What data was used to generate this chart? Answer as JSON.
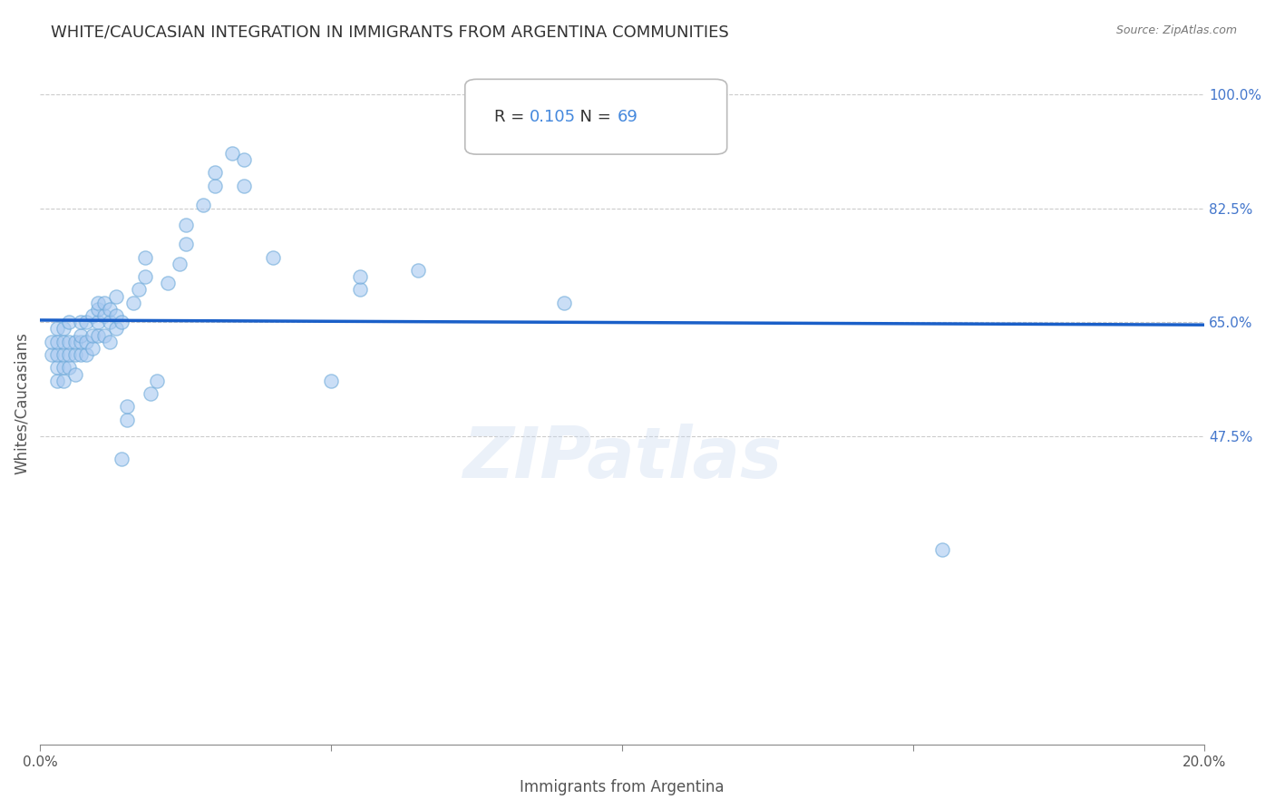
{
  "title": "WHITE/CAUCASIAN INTEGRATION IN IMMIGRANTS FROM ARGENTINA COMMUNITIES",
  "source": "Source: ZipAtlas.com",
  "xlabel": "Immigrants from Argentina",
  "ylabel": "Whites/Caucasians",
  "xlim": [
    0.0,
    0.2
  ],
  "ylim": [
    0.0,
    1.05
  ],
  "ytick_labels": [
    "100.0%",
    "82.5%",
    "65.0%",
    "47.5%"
  ],
  "ytick_positions": [
    1.0,
    0.825,
    0.65,
    0.475
  ],
  "R": 0.105,
  "N": 69,
  "scatter_color": "#a8c8f0",
  "scatter_edge_color": "#6aa8d8",
  "line_color": "#1a5fc8",
  "background_color": "#ffffff",
  "grid_color": "#cccccc",
  "title_color": "#333333",
  "marker_size": 120,
  "scatter_alpha": 0.6,
  "x_data": [
    0.002,
    0.002,
    0.003,
    0.003,
    0.003,
    0.003,
    0.003,
    0.004,
    0.004,
    0.004,
    0.004,
    0.004,
    0.005,
    0.005,
    0.005,
    0.005,
    0.006,
    0.006,
    0.006,
    0.007,
    0.007,
    0.007,
    0.007,
    0.008,
    0.008,
    0.008,
    0.009,
    0.009,
    0.009,
    0.01,
    0.01,
    0.01,
    0.01,
    0.011,
    0.011,
    0.011,
    0.012,
    0.012,
    0.012,
    0.013,
    0.013,
    0.013,
    0.014,
    0.014,
    0.015,
    0.015,
    0.016,
    0.017,
    0.018,
    0.018,
    0.019,
    0.02,
    0.022,
    0.024,
    0.025,
    0.025,
    0.028,
    0.03,
    0.03,
    0.033,
    0.035,
    0.035,
    0.04,
    0.05,
    0.055,
    0.055,
    0.065,
    0.09,
    0.155
  ],
  "y_data": [
    0.6,
    0.62,
    0.56,
    0.58,
    0.6,
    0.62,
    0.64,
    0.56,
    0.58,
    0.6,
    0.62,
    0.64,
    0.58,
    0.6,
    0.62,
    0.65,
    0.57,
    0.6,
    0.62,
    0.6,
    0.62,
    0.63,
    0.65,
    0.6,
    0.62,
    0.65,
    0.61,
    0.63,
    0.66,
    0.63,
    0.65,
    0.67,
    0.68,
    0.63,
    0.66,
    0.68,
    0.62,
    0.65,
    0.67,
    0.64,
    0.66,
    0.69,
    0.65,
    0.44,
    0.5,
    0.52,
    0.68,
    0.7,
    0.72,
    0.75,
    0.54,
    0.56,
    0.71,
    0.74,
    0.77,
    0.8,
    0.83,
    0.86,
    0.88,
    0.91,
    0.86,
    0.9,
    0.75,
    0.56,
    0.7,
    0.72,
    0.73,
    0.68,
    0.3
  ]
}
